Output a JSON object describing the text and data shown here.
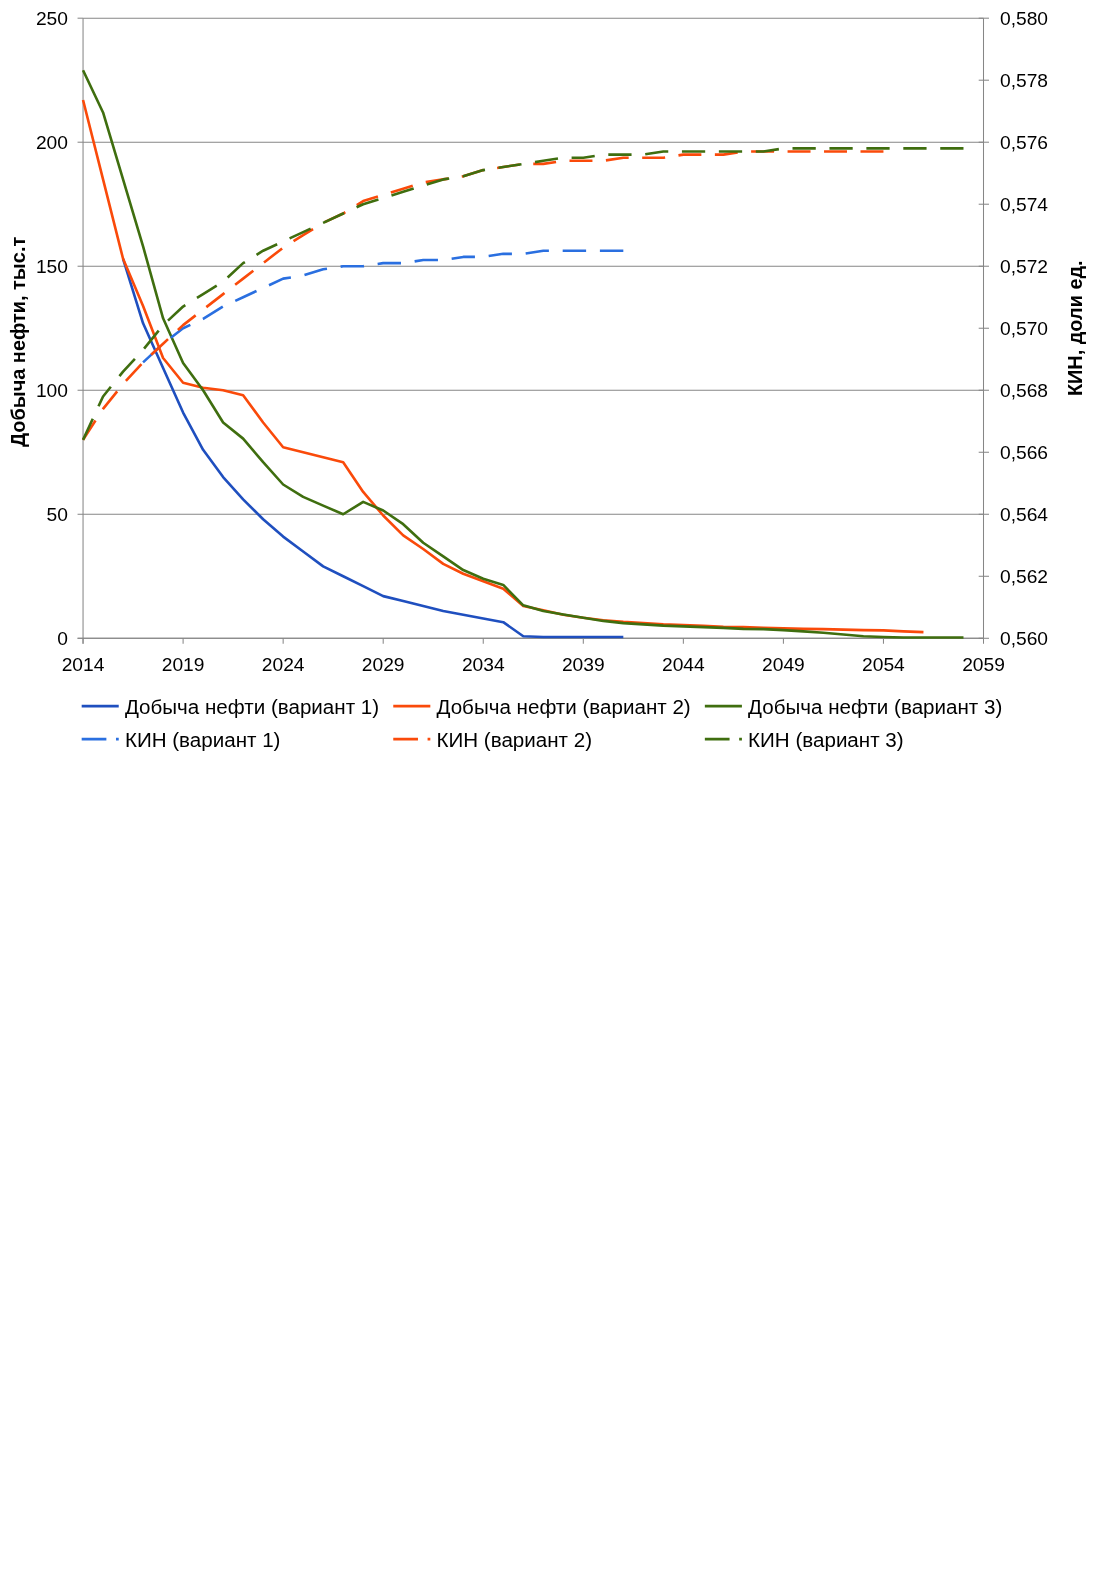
{
  "chart_data": {
    "type": "line",
    "ylabel": "Добыча нефти, тыс.т",
    "y2label": "КИН, доли ед.",
    "xlim": [
      2014,
      2059
    ],
    "xticks": [
      2014,
      2019,
      2024,
      2029,
      2034,
      2039,
      2044,
      2049,
      2054,
      2059
    ],
    "ylim": [
      0,
      250
    ],
    "yticks": [
      0,
      50,
      100,
      150,
      200,
      250
    ],
    "y2lim": [
      0.56,
      0.58
    ],
    "y2ticks": [
      {
        "value": 0.56,
        "label": "0,560"
      },
      {
        "value": 0.562,
        "label": "0,562"
      },
      {
        "value": 0.564,
        "label": "0,564"
      },
      {
        "value": 0.566,
        "label": "0,566"
      },
      {
        "value": 0.568,
        "label": "0,568"
      },
      {
        "value": 0.57,
        "label": "0,570"
      },
      {
        "value": 0.572,
        "label": "0,572"
      },
      {
        "value": 0.574,
        "label": "0,574"
      },
      {
        "value": 0.576,
        "label": "0,576"
      },
      {
        "value": 0.578,
        "label": "0,578"
      },
      {
        "value": 0.58,
        "label": "0,580"
      }
    ],
    "grid": "y",
    "legend": "bottom",
    "series": [
      {
        "name": "Добыча нефти (вариант 1)",
        "color": "#1f4fbf",
        "x": [
          2016,
          2017,
          2018,
          2019,
          2020,
          2021,
          2022,
          2023,
          2024,
          2025,
          2026,
          2027,
          2028,
          2029,
          2030,
          2031,
          2032,
          2033,
          2034,
          2035,
          2036,
          2037,
          2038,
          2039,
          2040,
          2041
        ],
        "values": [
          153,
          127,
          109,
          91,
          76,
          65,
          56,
          48,
          41,
          35,
          29,
          25,
          21,
          17,
          15,
          13,
          11,
          9.5,
          8,
          6.5,
          0.8,
          0.5,
          0.5,
          0.5,
          0.5,
          0.5
        ]
      },
      {
        "name": "Добыча нефти (вариант 2)",
        "color": "#fa4a0a",
        "x": [
          2014,
          2015,
          2016,
          2017,
          2018,
          2019,
          2020,
          2021,
          2022,
          2023,
          2024,
          2025,
          2026,
          2027,
          2028,
          2029,
          2030,
          2031,
          2032,
          2033,
          2034,
          2035,
          2036,
          2037,
          2038,
          2039,
          2040,
          2041,
          2042,
          2043,
          2044,
          2045,
          2046,
          2047,
          2048,
          2049,
          2050,
          2051,
          2052,
          2053,
          2054,
          2055,
          2056
        ],
        "values": [
          217,
          185,
          153,
          134,
          113,
          103,
          101,
          100,
          98,
          87,
          77,
          75,
          73,
          71,
          59,
          49.5,
          41.5,
          36,
          30,
          26,
          23,
          20,
          13,
          11.3,
          9.5,
          8.3,
          7.3,
          6.6,
          6.1,
          5.6,
          5.3,
          5,
          4.6,
          4.5,
          4.2,
          4,
          3.8,
          3.7,
          3.5,
          3.3,
          3.2,
          2.8,
          2.5
        ]
      },
      {
        "name": "Добыча нефти (вариант 3)",
        "color": "#3f6e0f",
        "x": [
          2014,
          2015,
          2016,
          2017,
          2018,
          2019,
          2020,
          2021,
          2022,
          2023,
          2024,
          2025,
          2026,
          2027,
          2028,
          2029,
          2030,
          2031,
          2032,
          2033,
          2034,
          2035,
          2036,
          2037,
          2038,
          2039,
          2040,
          2041,
          2042,
          2043,
          2044,
          2045,
          2046,
          2047,
          2048,
          2049,
          2050,
          2051,
          2052,
          2053,
          2054,
          2055,
          2056,
          2057,
          2058
        ],
        "values": [
          229,
          212,
          185,
          158,
          129,
          111,
          100,
          87,
          80.5,
          71,
          62,
          57,
          53.5,
          50,
          55,
          51.5,
          46,
          38.5,
          33,
          27.5,
          24,
          21.5,
          13.3,
          11,
          9.6,
          8.3,
          7,
          6.1,
          5.6,
          5.1,
          4.8,
          4.5,
          4.2,
          3.8,
          3.7,
          3.3,
          2.8,
          2.2,
          1.5,
          0.8,
          0.5,
          0.3,
          0.3,
          0.3,
          0.3
        ]
      },
      {
        "name": "КИН (вариант 1)",
        "color": "#2a6fe0",
        "axis": "y2",
        "line_style": "dashed",
        "x": [
          2017,
          2018,
          2019,
          2020,
          2021,
          2022,
          2023,
          2024,
          2025,
          2026,
          2027,
          2028,
          2029,
          2030,
          2031,
          2032,
          2033,
          2034,
          2035,
          2036,
          2037,
          2038,
          2039,
          2040,
          2041
        ],
        "values": [
          0.5689,
          0.5695,
          0.57,
          0.5703,
          0.5707,
          0.571,
          0.5713,
          0.5716,
          0.5717,
          0.5719,
          0.572,
          0.572,
          0.5721,
          0.5721,
          0.5722,
          0.5722,
          0.5723,
          0.5723,
          0.5724,
          0.5724,
          0.5725,
          0.5725,
          0.5725,
          0.5725,
          0.5725
        ]
      },
      {
        "name": "КИН (вариант 2)",
        "color": "#fa4a0a",
        "axis": "y2",
        "line_style": "dashed",
        "x": [
          2014,
          2015,
          2016,
          2017,
          2018,
          2019,
          2020,
          2021,
          2022,
          2023,
          2024,
          2025,
          2026,
          2027,
          2028,
          2029,
          2030,
          2031,
          2032,
          2033,
          2034,
          2035,
          2036,
          2037,
          2038,
          2039,
          2040,
          2041,
          2042,
          2043,
          2044,
          2045,
          2046,
          2047,
          2048,
          2049,
          2050,
          2051,
          2052,
          2053,
          2054
        ],
        "values": [
          0.5664,
          0.5674,
          0.5682,
          0.5689,
          0.5695,
          0.5701,
          0.5706,
          0.5711,
          0.5716,
          0.5721,
          0.5726,
          0.573,
          0.5734,
          0.5737,
          0.5741,
          0.5743,
          0.5745,
          0.5747,
          0.5748,
          0.5749,
          0.5751,
          0.5752,
          0.5753,
          0.5753,
          0.5754,
          0.5754,
          0.5754,
          0.5755,
          0.5755,
          0.5755,
          0.5756,
          0.5756,
          0.5756,
          0.5757,
          0.5757,
          0.5757,
          0.5757,
          0.5757,
          0.5757,
          0.5757,
          0.5757
        ]
      },
      {
        "name": "КИН (вариант 3)",
        "color": "#3f6e0f",
        "axis": "y2",
        "line_style": "dashed",
        "x": [
          2014,
          2015,
          2016,
          2017,
          2018,
          2019,
          2020,
          2021,
          2022,
          2023,
          2024,
          2025,
          2026,
          2027,
          2028,
          2029,
          2030,
          2031,
          2032,
          2033,
          2034,
          2035,
          2036,
          2037,
          2038,
          2039,
          2040,
          2041,
          2042,
          2043,
          2044,
          2045,
          2046,
          2047,
          2048,
          2049,
          2050,
          2051,
          2052,
          2053,
          2054,
          2055,
          2056,
          2057,
          2058
        ],
        "values": [
          0.5664,
          0.5678,
          0.5686,
          0.5693,
          0.5701,
          0.5707,
          0.5711,
          0.5715,
          0.5721,
          0.5725,
          0.5728,
          0.5731,
          0.5734,
          0.5737,
          0.574,
          0.5742,
          0.5744,
          0.5746,
          0.5748,
          0.5749,
          0.5751,
          0.5752,
          0.5753,
          0.5754,
          0.5755,
          0.5755,
          0.5756,
          0.5756,
          0.5756,
          0.5757,
          0.5757,
          0.5757,
          0.5757,
          0.5757,
          0.5757,
          0.5758,
          0.5758,
          0.5758,
          0.5758,
          0.5758,
          0.5758,
          0.5758,
          0.5758,
          0.5758,
          0.5758
        ]
      }
    ]
  }
}
